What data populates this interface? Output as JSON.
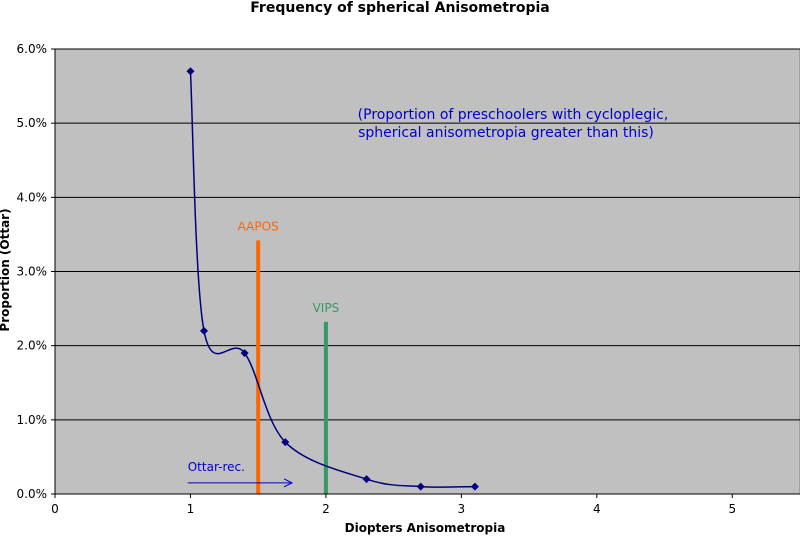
{
  "chart_data": {
    "type": "scatter",
    "title": "Frequency of spherical Anisometropia",
    "xlabel": "Diopters Anisometropia",
    "ylabel": "Proportion (Ottar)",
    "xlim": [
      0,
      5.5
    ],
    "ylim": [
      0,
      0.06
    ],
    "x_ticks": [
      0,
      1,
      2,
      3,
      4,
      5
    ],
    "x_tick_labels": [
      "0",
      "1",
      "2",
      "3",
      "4",
      "5"
    ],
    "y_ticks": [
      0,
      0.01,
      0.02,
      0.03,
      0.04,
      0.05,
      0.06
    ],
    "y_tick_labels": [
      "0.0%",
      "1.0%",
      "2.0%",
      "3.0%",
      "4.0%",
      "5.0%",
      "6.0%"
    ],
    "grid": "horizontal",
    "plot_background": "#c0c0c0",
    "series": [
      {
        "color": "#000080",
        "smooth": true,
        "marker": "diamond",
        "points": [
          {
            "x": 1.0,
            "y": 0.057
          },
          {
            "x": 1.1,
            "y": 0.022
          },
          {
            "x": 1.4,
            "y": 0.019
          },
          {
            "x": 1.7,
            "y": 0.007
          },
          {
            "x": 2.3,
            "y": 0.002
          },
          {
            "x": 2.7,
            "y": 0.001
          },
          {
            "x": 3.1,
            "y": 0.001
          }
        ]
      }
    ],
    "reference_lines": [
      {
        "label": "AAPOS",
        "x": 1.5,
        "y_top": 0.0342,
        "color": "#ff6600"
      },
      {
        "label": "VIPS",
        "x": 2.0,
        "y_top": 0.0232,
        "color": "#339966"
      }
    ],
    "annotations": {
      "note_line1": "(Proportion of preschoolers with cycloplegic,",
      "note_line2": "spherical anisometropia greater than this)",
      "note_color": "#0000cc",
      "arrow_label": "Ottar-rec.",
      "arrow_color": "#0000cc",
      "arrow_from_x": 0.98,
      "arrow_to_x": 1.75,
      "arrow_y": 0.0015
    }
  }
}
